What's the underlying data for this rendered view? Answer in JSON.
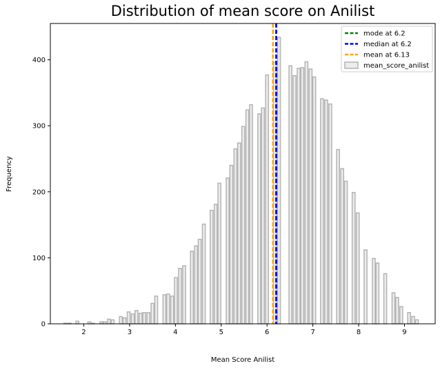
{
  "chart_data": {
    "type": "bar",
    "title": "Distribution of mean score on Anilist",
    "xlabel": "Mean Score Anilist",
    "ylabel": "Frequency",
    "xlim": [
      1.27,
      9.67
    ],
    "ylim": [
      0,
      455
    ],
    "xticks": [
      2,
      3,
      4,
      5,
      6,
      7,
      8,
      9
    ],
    "yticks": [
      0,
      100,
      200,
      300,
      400
    ],
    "bin_width": 0.0865,
    "bins_x": [
      1.6,
      1.69,
      1.77,
      1.86,
      1.94,
      2.03,
      2.12,
      2.2,
      2.29,
      2.38,
      2.46,
      2.55,
      2.63,
      2.72,
      2.81,
      2.89,
      2.98,
      3.07,
      3.15,
      3.24,
      3.32,
      3.41,
      3.5,
      3.58,
      3.67,
      3.76,
      3.84,
      3.93,
      4.01,
      4.1,
      4.19,
      4.27,
      4.36,
      4.45,
      4.53,
      4.62,
      4.7,
      4.79,
      4.88,
      4.96,
      5.05,
      5.14,
      5.22,
      5.31,
      5.39,
      5.48,
      5.57,
      5.65,
      5.74,
      5.83,
      5.91,
      6.0,
      6.08,
      6.17,
      6.26,
      6.34,
      6.43,
      6.51,
      6.6,
      6.69,
      6.77,
      6.86,
      6.95,
      7.03,
      7.12,
      7.2,
      7.29,
      7.38,
      7.46,
      7.55,
      7.64,
      7.72,
      7.81,
      7.89,
      7.98,
      8.07,
      8.15,
      8.24,
      8.33,
      8.41,
      8.5,
      8.58,
      8.67,
      8.76,
      8.84,
      8.93,
      9.02,
      9.1,
      9.19,
      9.27
    ],
    "series": [
      {
        "name": "mean_score_anilist",
        "values": [
          1,
          1,
          0,
          4,
          0,
          0,
          3,
          1,
          0,
          3,
          3,
          7,
          6,
          0,
          11,
          9,
          18,
          15,
          20,
          16,
          17,
          17,
          31,
          42,
          0,
          44,
          45,
          42,
          70,
          84,
          88,
          0,
          110,
          118,
          128,
          151,
          0,
          172,
          181,
          213,
          0,
          221,
          240,
          265,
          274,
          299,
          324,
          332,
          0,
          318,
          327,
          377,
          0,
          396,
          434,
          0,
          0,
          391,
          376,
          387,
          388,
          397,
          386,
          374,
          0,
          341,
          339,
          333,
          0,
          264,
          235,
          216,
          0,
          199,
          168,
          0,
          112,
          0,
          99,
          92,
          0,
          76,
          0,
          47,
          40,
          26,
          0,
          17,
          11,
          6
        ]
      }
    ],
    "vlines": [
      {
        "label": "mode at 6.2",
        "x": 6.2,
        "color": "#008000"
      },
      {
        "label": "median at 6.2",
        "x": 6.2,
        "color": "#0000ff"
      },
      {
        "label": "mean at 6.13",
        "x": 6.13,
        "color": "#ffa500"
      }
    ],
    "colors": {
      "bar_fill": "#ececec",
      "bar_edge": "#b3b3b3"
    },
    "legend_placement": "top-right",
    "grid": false
  }
}
